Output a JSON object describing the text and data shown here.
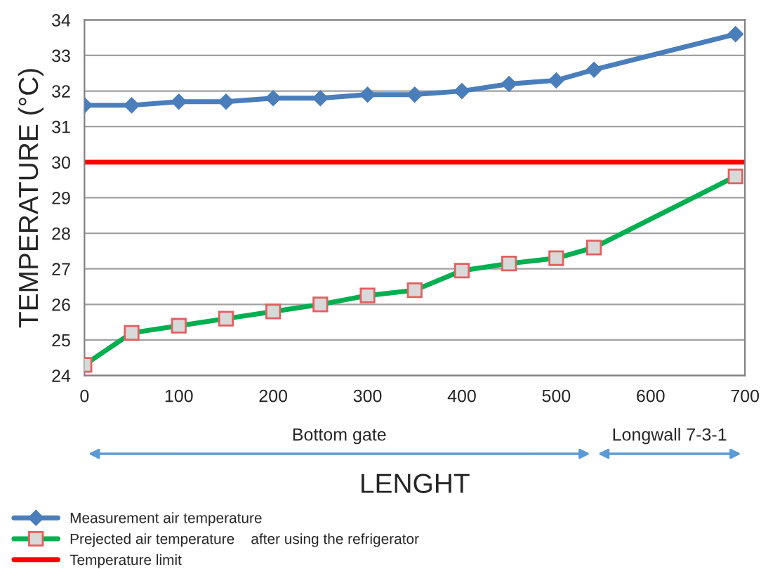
{
  "chart_data": {
    "type": "line",
    "xlabel": "LENGHT",
    "ylabel": "TEMPERATURE (°C)",
    "x": [
      0,
      50,
      100,
      150,
      200,
      250,
      300,
      350,
      400,
      450,
      500,
      540,
      690
    ],
    "series": [
      {
        "name": "Measurement air temperature",
        "color": "#4a7ebb",
        "marker": "diamond",
        "values": [
          31.6,
          31.6,
          31.7,
          31.7,
          31.8,
          31.8,
          31.9,
          31.9,
          32.0,
          32.2,
          32.3,
          32.6,
          33.6
        ]
      },
      {
        "name": "Prejected air temperature    after using the refrigerator",
        "color": "#00b050",
        "marker": "square",
        "values": [
          24.3,
          25.2,
          25.4,
          25.6,
          25.8,
          26.0,
          26.25,
          26.4,
          26.95,
          27.15,
          27.3,
          27.6,
          29.6
        ]
      }
    ],
    "ref_lines": [
      {
        "axis": "y",
        "value": 30,
        "label": "Temperature limit",
        "color": "#ff0000"
      }
    ],
    "annotations": [
      "Bottom gate",
      "Longwall 7-3-1"
    ],
    "xlim": [
      0,
      700
    ],
    "xticks": [
      0,
      100,
      200,
      300,
      400,
      500,
      600,
      700
    ],
    "ylim": [
      24,
      34
    ],
    "yticks": [
      24,
      25,
      26,
      27,
      28,
      29,
      30,
      31,
      32,
      33,
      34
    ],
    "grid": "y",
    "legend": "bottom",
    "line_style": "solid"
  }
}
